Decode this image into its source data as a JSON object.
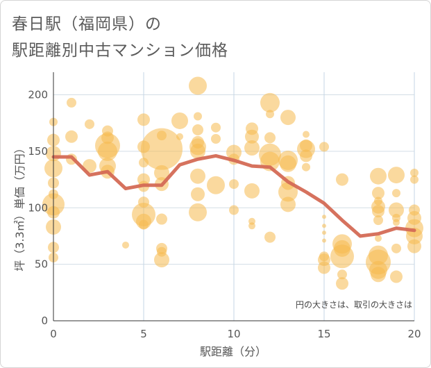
{
  "chart_data": {
    "type": "scatter",
    "title_line1": "春日駅（福岡県）の",
    "title_line2": "駅距離別中古マンション価格",
    "xlabel": "駅距離（分）",
    "ylabel": "坪（3.3㎡）単価（万円）",
    "xlim": [
      0,
      20
    ],
    "ylim": [
      0,
      220
    ],
    "x_ticks": [
      0,
      5,
      10,
      15,
      20
    ],
    "y_ticks": [
      0,
      50,
      100,
      150,
      200
    ],
    "note": "円の大きさは、取引の大きさは",
    "bubble_color": "#f5b94f",
    "line_color": "#d46a55",
    "line": {
      "x": [
        0,
        1,
        2,
        3,
        4,
        5,
        6,
        7,
        8,
        9,
        10,
        11,
        12,
        13,
        14,
        15,
        16,
        17,
        18,
        19,
        20
      ],
      "y": [
        145,
        145,
        129,
        132,
        117,
        120,
        120,
        138,
        143,
        146,
        142,
        137,
        136,
        123,
        114,
        104,
        89,
        75,
        77,
        82,
        80
      ]
    },
    "points": [
      {
        "x": 0,
        "y": 176,
        "r": 6
      },
      {
        "x": 0,
        "y": 160,
        "r": 9
      },
      {
        "x": 0,
        "y": 148,
        "r": 11
      },
      {
        "x": 0,
        "y": 135,
        "r": 13
      },
      {
        "x": 0,
        "y": 122,
        "r": 8
      },
      {
        "x": 0,
        "y": 112,
        "r": 7
      },
      {
        "x": 0,
        "y": 103,
        "r": 16
      },
      {
        "x": 0,
        "y": 96,
        "r": 9
      },
      {
        "x": 0,
        "y": 83,
        "r": 11
      },
      {
        "x": 0,
        "y": 65,
        "r": 8
      },
      {
        "x": 0,
        "y": 56,
        "r": 7
      },
      {
        "x": 1,
        "y": 193,
        "r": 7
      },
      {
        "x": 1,
        "y": 163,
        "r": 9
      },
      {
        "x": 1,
        "y": 143,
        "r": 8
      },
      {
        "x": 2,
        "y": 174,
        "r": 7
      },
      {
        "x": 2,
        "y": 137,
        "r": 10
      },
      {
        "x": 3,
        "y": 168,
        "r": 8
      },
      {
        "x": 3,
        "y": 162,
        "r": 9
      },
      {
        "x": 3,
        "y": 155,
        "r": 18
      },
      {
        "x": 3,
        "y": 150,
        "r": 14
      },
      {
        "x": 3,
        "y": 137,
        "r": 12
      },
      {
        "x": 3,
        "y": 132,
        "r": 10
      },
      {
        "x": 4,
        "y": 67,
        "r": 5
      },
      {
        "x": 5,
        "y": 178,
        "r": 9
      },
      {
        "x": 5,
        "y": 154,
        "r": 9
      },
      {
        "x": 5,
        "y": 140,
        "r": 7
      },
      {
        "x": 5,
        "y": 125,
        "r": 9
      },
      {
        "x": 5,
        "y": 119,
        "r": 8
      },
      {
        "x": 5,
        "y": 105,
        "r": 8
      },
      {
        "x": 5,
        "y": 94,
        "r": 17
      },
      {
        "x": 5,
        "y": 88,
        "r": 11
      },
      {
        "x": 5,
        "y": 85,
        "r": 7
      },
      {
        "x": 6,
        "y": 164,
        "r": 7
      },
      {
        "x": 6,
        "y": 152,
        "r": 30
      },
      {
        "x": 6,
        "y": 131,
        "r": 11
      },
      {
        "x": 6,
        "y": 121,
        "r": 10
      },
      {
        "x": 6,
        "y": 90,
        "r": 8
      },
      {
        "x": 6,
        "y": 64,
        "r": 8
      },
      {
        "x": 6,
        "y": 61,
        "r": 7
      },
      {
        "x": 6,
        "y": 54,
        "r": 11
      },
      {
        "x": 7,
        "y": 177,
        "r": 12
      },
      {
        "x": 7,
        "y": 163,
        "r": 5
      },
      {
        "x": 8,
        "y": 208,
        "r": 13
      },
      {
        "x": 8,
        "y": 181,
        "r": 6
      },
      {
        "x": 8,
        "y": 169,
        "r": 8
      },
      {
        "x": 8,
        "y": 158,
        "r": 9
      },
      {
        "x": 8,
        "y": 154,
        "r": 12
      },
      {
        "x": 8,
        "y": 150,
        "r": 11
      },
      {
        "x": 8,
        "y": 128,
        "r": 11
      },
      {
        "x": 8,
        "y": 112,
        "r": 10
      },
      {
        "x": 8,
        "y": 96,
        "r": 13
      },
      {
        "x": 9,
        "y": 171,
        "r": 7
      },
      {
        "x": 9,
        "y": 161,
        "r": 7
      },
      {
        "x": 9,
        "y": 120,
        "r": 13
      },
      {
        "x": 10,
        "y": 149,
        "r": 11
      },
      {
        "x": 10,
        "y": 143,
        "r": 8
      },
      {
        "x": 10,
        "y": 121,
        "r": 7
      },
      {
        "x": 10,
        "y": 98,
        "r": 7
      },
      {
        "x": 11,
        "y": 170,
        "r": 9
      },
      {
        "x": 11,
        "y": 163,
        "r": 10
      },
      {
        "x": 11,
        "y": 153,
        "r": 11
      },
      {
        "x": 11,
        "y": 115,
        "r": 11
      },
      {
        "x": 11,
        "y": 88,
        "r": 5
      },
      {
        "x": 11,
        "y": 84,
        "r": 5
      },
      {
        "x": 12,
        "y": 193,
        "r": 14
      },
      {
        "x": 12,
        "y": 183,
        "r": 6
      },
      {
        "x": 12,
        "y": 162,
        "r": 8
      },
      {
        "x": 12,
        "y": 147,
        "r": 16
      },
      {
        "x": 12,
        "y": 141,
        "r": 14
      },
      {
        "x": 12,
        "y": 74,
        "r": 8
      },
      {
        "x": 13,
        "y": 180,
        "r": 11
      },
      {
        "x": 13,
        "y": 142,
        "r": 14
      },
      {
        "x": 13,
        "y": 139,
        "r": 12
      },
      {
        "x": 13,
        "y": 122,
        "r": 10
      },
      {
        "x": 13,
        "y": 114,
        "r": 14
      },
      {
        "x": 13,
        "y": 103,
        "r": 11
      },
      {
        "x": 14,
        "y": 165,
        "r": 5
      },
      {
        "x": 14,
        "y": 155,
        "r": 9
      },
      {
        "x": 14,
        "y": 152,
        "r": 13
      },
      {
        "x": 14,
        "y": 146,
        "r": 9
      },
      {
        "x": 14,
        "y": 136,
        "r": 6
      },
      {
        "x": 15,
        "y": 154,
        "r": 7
      },
      {
        "x": 15,
        "y": 92,
        "r": 3
      },
      {
        "x": 15,
        "y": 84,
        "r": 3
      },
      {
        "x": 15,
        "y": 78,
        "r": 3
      },
      {
        "x": 15,
        "y": 71,
        "r": 3
      },
      {
        "x": 15,
        "y": 57,
        "r": 7
      },
      {
        "x": 15,
        "y": 54,
        "r": 9
      },
      {
        "x": 15,
        "y": 47,
        "r": 9
      },
      {
        "x": 16,
        "y": 125,
        "r": 9
      },
      {
        "x": 16,
        "y": 68,
        "r": 14
      },
      {
        "x": 16,
        "y": 64,
        "r": 12
      },
      {
        "x": 16,
        "y": 57,
        "r": 17
      },
      {
        "x": 16,
        "y": 41,
        "r": 7
      },
      {
        "x": 16,
        "y": 33,
        "r": 9
      },
      {
        "x": 18,
        "y": 128,
        "r": 12
      },
      {
        "x": 18,
        "y": 113,
        "r": 9
      },
      {
        "x": 18,
        "y": 106,
        "r": 6
      },
      {
        "x": 18,
        "y": 101,
        "r": 10
      },
      {
        "x": 18,
        "y": 97,
        "r": 9
      },
      {
        "x": 18,
        "y": 89,
        "r": 7
      },
      {
        "x": 18,
        "y": 73,
        "r": 5
      },
      {
        "x": 18,
        "y": 58,
        "r": 14
      },
      {
        "x": 18,
        "y": 52,
        "r": 18
      },
      {
        "x": 18,
        "y": 45,
        "r": 13
      },
      {
        "x": 18,
        "y": 41,
        "r": 11
      },
      {
        "x": 19,
        "y": 129,
        "r": 12
      },
      {
        "x": 19,
        "y": 113,
        "r": 6
      },
      {
        "x": 19,
        "y": 98,
        "r": 11
      },
      {
        "x": 19,
        "y": 91,
        "r": 6
      },
      {
        "x": 19,
        "y": 87,
        "r": 5
      },
      {
        "x": 19,
        "y": 64,
        "r": 7
      },
      {
        "x": 19,
        "y": 39,
        "r": 9
      },
      {
        "x": 20,
        "y": 131,
        "r": 6
      },
      {
        "x": 20,
        "y": 125,
        "r": 6
      },
      {
        "x": 20,
        "y": 98,
        "r": 8
      },
      {
        "x": 20,
        "y": 91,
        "r": 10
      },
      {
        "x": 20,
        "y": 82,
        "r": 13
      },
      {
        "x": 20,
        "y": 75,
        "r": 12
      },
      {
        "x": 20,
        "y": 66,
        "r": 10
      }
    ]
  }
}
